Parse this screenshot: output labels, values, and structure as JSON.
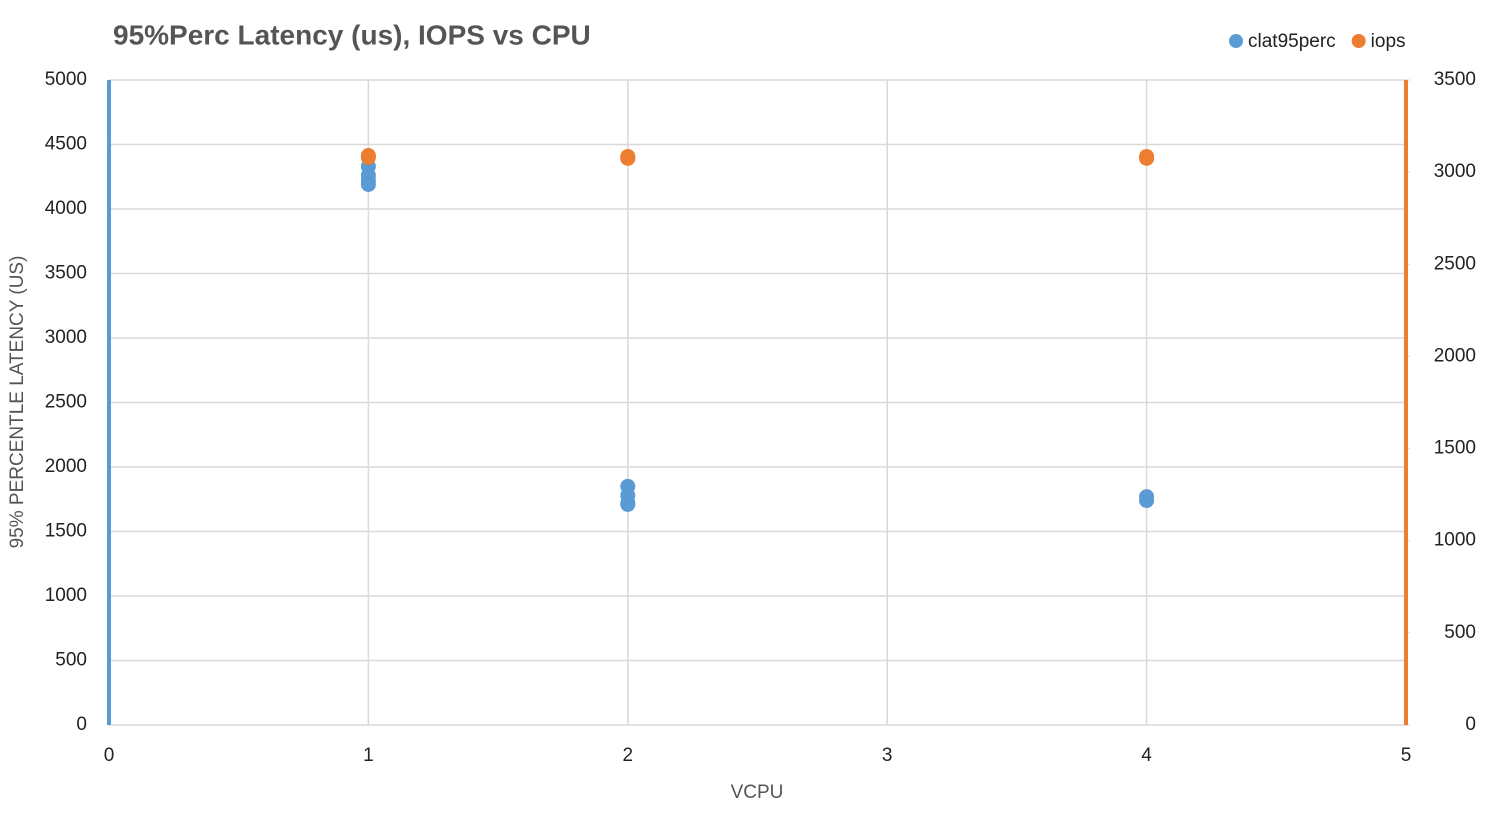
{
  "chart_data": {
    "type": "scatter",
    "title": "95%Perc Latency (us), IOPS vs CPU",
    "x_label": "VCPU",
    "y_label": "95% PERCENTLE LATENCY (US)",
    "xlim": [
      0,
      5
    ],
    "xticks": [
      0,
      1,
      2,
      3,
      4,
      5
    ],
    "ylim": [
      0,
      5000
    ],
    "yticks": [
      0,
      500,
      1000,
      1500,
      2000,
      2500,
      3000,
      3500,
      4000,
      4500,
      5000
    ],
    "y2lim": [
      0,
      3500
    ],
    "y2ticks": [
      0,
      500,
      1000,
      1500,
      2000,
      2500,
      3000,
      3500
    ],
    "grid": true,
    "legend": "top-right",
    "series": [
      {
        "name": "clat95perc",
        "color": "#5b9bd5",
        "x": [
          1,
          1,
          1,
          1,
          2,
          2,
          2,
          2,
          4,
          4
        ],
        "values": [
          4190,
          4220,
          4260,
          4330,
          1850,
          1780,
          1720,
          1710,
          1770,
          1740
        ]
      },
      {
        "name": "iops",
        "color": "#ed7d31",
        "axis": "y2",
        "x": [
          1,
          1,
          2,
          2,
          4,
          4
        ],
        "values": [
          3080,
          3090,
          3075,
          3085,
          3075,
          3085
        ]
      }
    ]
  }
}
